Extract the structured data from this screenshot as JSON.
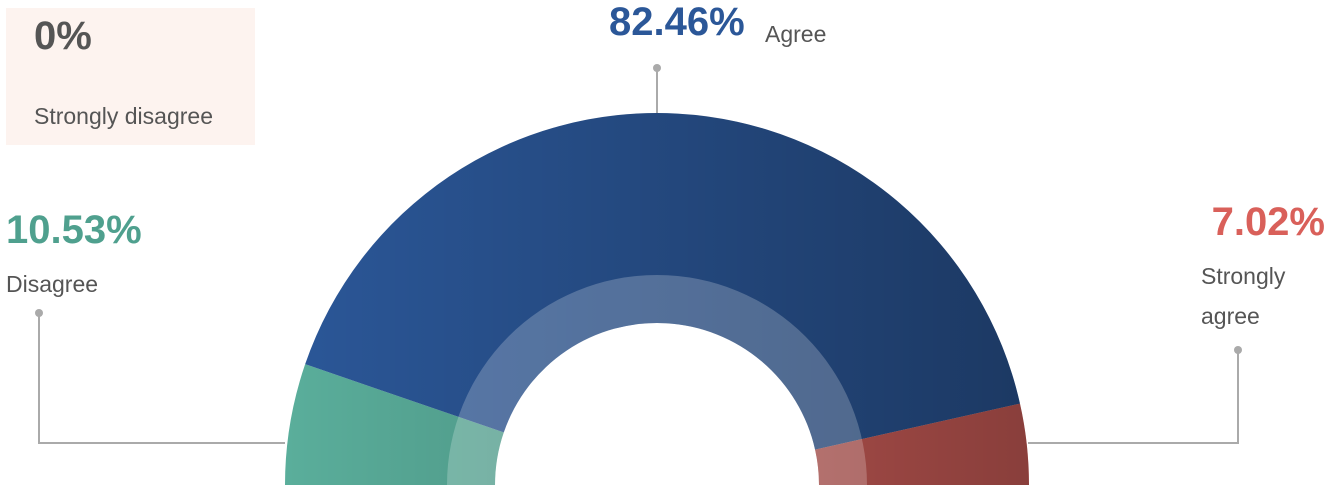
{
  "chart_data": {
    "type": "semi-donut",
    "categories": [
      "Strongly disagree",
      "Disagree",
      "Agree",
      "Strongly agree"
    ],
    "values": [
      0,
      10.53,
      82.46,
      7.02
    ],
    "value_labels": [
      "0%",
      "10.53%",
      "82.46%",
      "7.02%"
    ],
    "colors": [
      "#e8a89a",
      "#5aae9b",
      "#2b5798",
      "#d3605b"
    ]
  }
}
